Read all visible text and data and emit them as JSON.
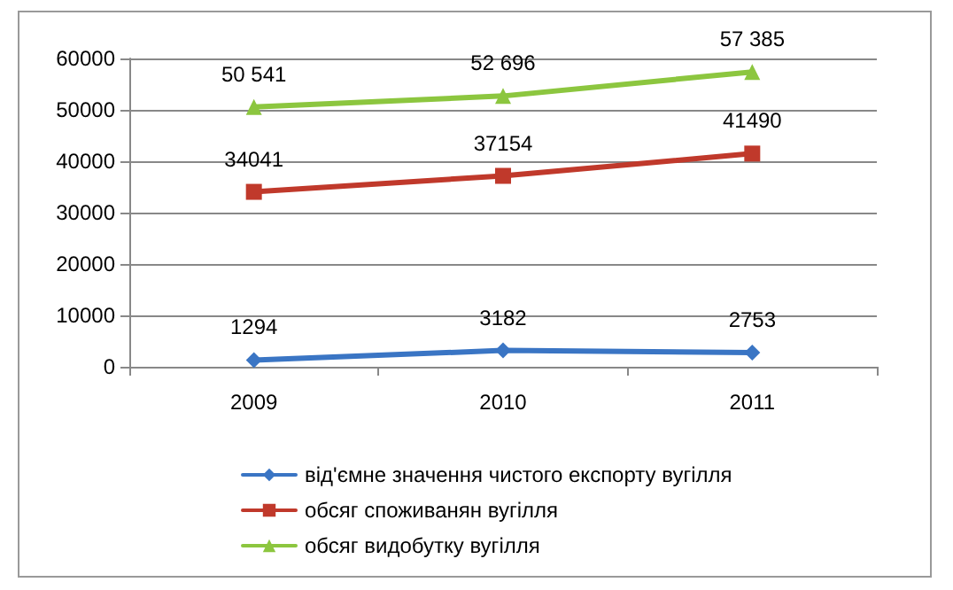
{
  "chart_data": {
    "type": "line",
    "categories": [
      "2009",
      "2010",
      "2011"
    ],
    "series": [
      {
        "name": "від'ємне значення чистого експорту вугілля",
        "color": "#3a75c4",
        "marker": "diamond",
        "values": [
          1294,
          3182,
          2753
        ],
        "value_labels": [
          "1294",
          "3182",
          "2753"
        ]
      },
      {
        "name": "обсяг споживанян вугілля",
        "color": "#c0392b",
        "marker": "square",
        "values": [
          34041,
          37154,
          41490
        ],
        "value_labels": [
          "34041",
          "37154",
          "41490"
        ]
      },
      {
        "name": "обсяг видобутку вугілля",
        "color": "#8cc63f",
        "marker": "triangle",
        "values": [
          50541,
          52696,
          57385
        ],
        "value_labels": [
          "50 541",
          "52 696",
          "57 385"
        ]
      }
    ],
    "ylim": [
      0,
      60000
    ],
    "yticks": [
      0,
      10000,
      20000,
      30000,
      40000,
      50000,
      60000
    ],
    "grid": "y",
    "legend": "bottom"
  }
}
